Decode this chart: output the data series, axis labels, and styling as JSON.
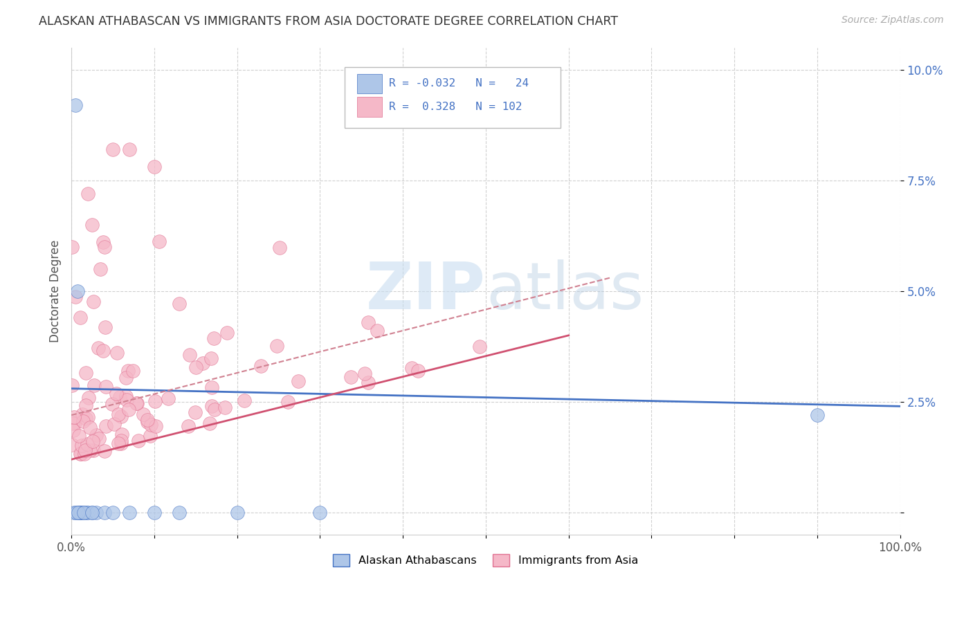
{
  "title": "ALASKAN ATHABASCAN VS IMMIGRANTS FROM ASIA DOCTORATE DEGREE CORRELATION CHART",
  "source": "Source: ZipAtlas.com",
  "ylabel": "Doctorate Degree",
  "xlim": [
    0.0,
    1.0
  ],
  "ylim": [
    -0.005,
    0.105
  ],
  "ytick_vals": [
    0.0,
    0.025,
    0.05,
    0.075,
    0.1
  ],
  "ytick_labels": [
    "",
    "2.5%",
    "5.0%",
    "7.5%",
    "10.0%"
  ],
  "xtick_vals": [
    0.0,
    0.1,
    0.2,
    0.3,
    0.4,
    0.5,
    0.6,
    0.7,
    0.8,
    0.9,
    1.0
  ],
  "xtick_labels": [
    "0.0%",
    "",
    "",
    "",
    "",
    "",
    "",
    "",
    "",
    "",
    "100.0%"
  ],
  "color_blue_fill": "#aec6e8",
  "color_blue_edge": "#4472c4",
  "color_pink_fill": "#f5b8c8",
  "color_pink_edge": "#e07090",
  "color_blue_line": "#4472c4",
  "color_pink_line": "#d05070",
  "color_dashed": "#d08090",
  "watermark_color": "#dde8f0",
  "watermark_text": "ZIPatlas",
  "legend_text_color": "#4472c4",
  "grid_color": "#d0d0d0",
  "blue_scatter_x": [
    0.005,
    0.007,
    0.008,
    0.01,
    0.012,
    0.012,
    0.015,
    0.018,
    0.02,
    0.025,
    0.03,
    0.04,
    0.05,
    0.07,
    0.1,
    0.13,
    0.2,
    0.3,
    0.9,
    0.003,
    0.006,
    0.008,
    0.015,
    0.025
  ],
  "blue_scatter_y": [
    0.092,
    0.05,
    0.0,
    0.0,
    0.0,
    0.0,
    0.0,
    0.0,
    0.0,
    0.0,
    0.0,
    0.0,
    0.0,
    0.0,
    0.0,
    0.0,
    0.0,
    0.0,
    0.022,
    0.0,
    0.0,
    0.0,
    0.0,
    0.0
  ],
  "blue_line_x": [
    0.0,
    1.0
  ],
  "blue_line_y": [
    0.028,
    0.024
  ],
  "pink_line_x": [
    0.0,
    0.6
  ],
  "pink_line_y": [
    0.012,
    0.04
  ],
  "dashed_line_x": [
    0.0,
    0.65
  ],
  "dashed_line_y": [
    0.022,
    0.053
  ]
}
